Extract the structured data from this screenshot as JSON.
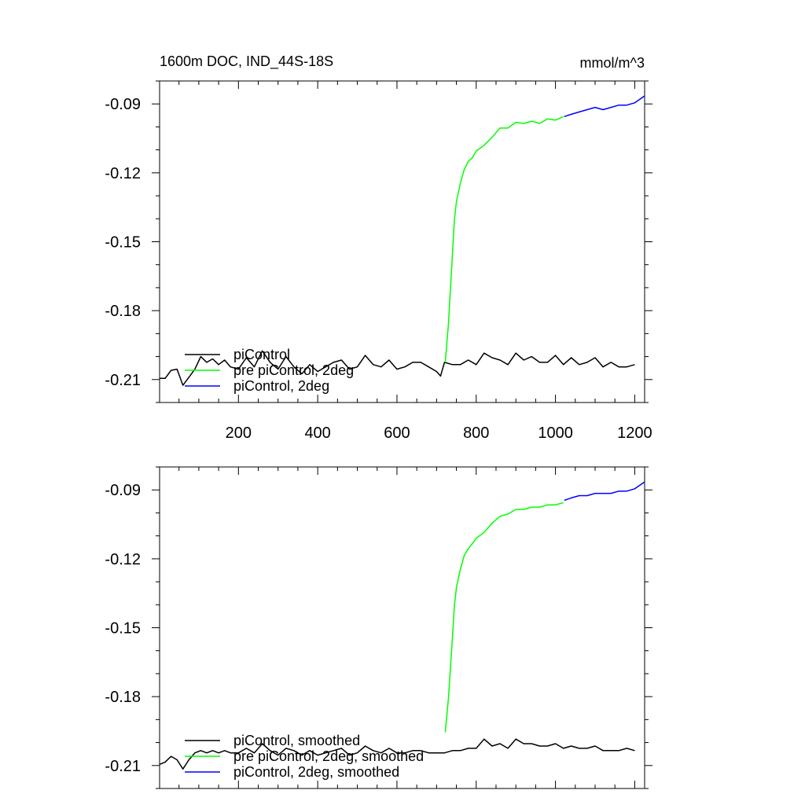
{
  "header": {
    "title": "1600m DOC, IND_44S-18S",
    "units": "mmol/m^3"
  },
  "colors": {
    "piControl": "#000000",
    "pre_piControl_2deg": "#00ff00",
    "piControl_2deg": "#0000ff"
  },
  "chart_data": [
    {
      "type": "line",
      "title": "1600m DOC, IND_44S-18S",
      "units": "mmol/m^3",
      "xlim": [
        1,
        1225
      ],
      "ylim": [
        -0.22,
        -0.08
      ],
      "x_ticks": [
        200,
        400,
        600,
        800,
        1000,
        1200
      ],
      "x_tick_labels": [
        "200",
        "400",
        "600",
        "800",
        "1000",
        "1200"
      ],
      "y_ticks": [
        -0.21,
        -0.18,
        -0.15,
        -0.12,
        -0.09
      ],
      "y_tick_labels": [
        "-0.21",
        "-0.18",
        "-0.15",
        "-0.12",
        "-0.09"
      ],
      "legend_position": "bottom-left",
      "grid": false,
      "series": [
        {
          "name": "piControl",
          "color": "#000000",
          "x": [
            1,
            15,
            30,
            45,
            60,
            75,
            90,
            105,
            120,
            135,
            150,
            165,
            180,
            200,
            220,
            240,
            260,
            280,
            300,
            320,
            340,
            360,
            380,
            400,
            420,
            440,
            460,
            480,
            500,
            520,
            540,
            560,
            580,
            600,
            620,
            640,
            660,
            680,
            700,
            710,
            720,
            740,
            760,
            780,
            800,
            820,
            840,
            860,
            880,
            900,
            920,
            940,
            960,
            980,
            1000,
            1020,
            1040,
            1060,
            1080,
            1100,
            1120,
            1140,
            1160,
            1180,
            1200
          ],
          "y": [
            -0.2095,
            -0.2095,
            -0.206,
            -0.2055,
            -0.2125,
            -0.209,
            -0.2055,
            -0.2,
            -0.2025,
            -0.201,
            -0.2035,
            -0.2015,
            -0.2045,
            -0.2055,
            -0.2005,
            -0.2045,
            -0.1975,
            -0.2025,
            -0.2055,
            -0.2,
            -0.2045,
            -0.2075,
            -0.2035,
            -0.2065,
            -0.2045,
            -0.2025,
            -0.2015,
            -0.2055,
            -0.2045,
            -0.1995,
            -0.2035,
            -0.2045,
            -0.2015,
            -0.2055,
            -0.2045,
            -0.2025,
            -0.2025,
            -0.2045,
            -0.2065,
            -0.2085,
            -0.2025,
            -0.2035,
            -0.2035,
            -0.2015,
            -0.2035,
            -0.1985,
            -0.2005,
            -0.2015,
            -0.2035,
            -0.1985,
            -0.2015,
            -0.2,
            -0.2025,
            -0.2025,
            -0.1995,
            -0.2035,
            -0.2005,
            -0.2035,
            -0.2025,
            -0.2005,
            -0.2045,
            -0.2025,
            -0.2045,
            -0.2045,
            -0.2035
          ]
        },
        {
          "name": "pre piControl, 2deg",
          "color": "#00ff00",
          "x": [
            722,
            730,
            740,
            745,
            750,
            760,
            770,
            780,
            790,
            800,
            820,
            840,
            860,
            880,
            900,
            920,
            940,
            960,
            980,
            1000,
            1020
          ],
          "y": [
            -0.2025,
            -0.1855,
            -0.1555,
            -0.1405,
            -0.1325,
            -0.1245,
            -0.1185,
            -0.115,
            -0.1135,
            -0.1105,
            -0.108,
            -0.1045,
            -0.1005,
            -0.1005,
            -0.098,
            -0.0985,
            -0.0975,
            -0.0985,
            -0.0965,
            -0.097,
            -0.0955
          ]
        },
        {
          "name": "piControl, 2deg",
          "color": "#0000ff",
          "x": [
            1022,
            1040,
            1060,
            1080,
            1100,
            1120,
            1140,
            1160,
            1180,
            1200,
            1225
          ],
          "y": [
            -0.0955,
            -0.0945,
            -0.0935,
            -0.0925,
            -0.0915,
            -0.0925,
            -0.0915,
            -0.0905,
            -0.0905,
            -0.0895,
            -0.0865
          ]
        }
      ]
    },
    {
      "type": "line",
      "xlim": [
        1,
        1225
      ],
      "ylim": [
        -0.22,
        -0.08
      ],
      "x_ticks": [
        200,
        400,
        600,
        800,
        1000,
        1200
      ],
      "y_ticks": [
        -0.21,
        -0.18,
        -0.15,
        -0.12,
        -0.09
      ],
      "y_tick_labels": [
        "-0.21",
        "-0.18",
        "-0.15",
        "-0.12",
        "-0.09"
      ],
      "legend_position": "bottom-left",
      "grid": false,
      "series": [
        {
          "name": "piControl, smoothed",
          "color": "#000000",
          "x": [
            1,
            15,
            30,
            45,
            60,
            75,
            90,
            105,
            120,
            135,
            150,
            165,
            180,
            200,
            220,
            240,
            260,
            280,
            300,
            320,
            340,
            360,
            380,
            400,
            420,
            440,
            460,
            480,
            500,
            520,
            540,
            560,
            580,
            600,
            620,
            640,
            660,
            680,
            700,
            710,
            720,
            740,
            760,
            780,
            800,
            820,
            840,
            860,
            880,
            900,
            920,
            940,
            960,
            980,
            1000,
            1020,
            1040,
            1060,
            1080,
            1100,
            1120,
            1140,
            1160,
            1180,
            1200
          ],
          "y": [
            -0.2095,
            -0.2085,
            -0.206,
            -0.2075,
            -0.2115,
            -0.2075,
            -0.2045,
            -0.2035,
            -0.2045,
            -0.2035,
            -0.2045,
            -0.2035,
            -0.2045,
            -0.2045,
            -0.2025,
            -0.2045,
            -0.2005,
            -0.2035,
            -0.2055,
            -0.2025,
            -0.2035,
            -0.2055,
            -0.2035,
            -0.2055,
            -0.2045,
            -0.2035,
            -0.2025,
            -0.2055,
            -0.2045,
            -0.2015,
            -0.2035,
            -0.2045,
            -0.2025,
            -0.2045,
            -0.2045,
            -0.2035,
            -0.2035,
            -0.2045,
            -0.2045,
            -0.2045,
            -0.2045,
            -0.2035,
            -0.2035,
            -0.2025,
            -0.2025,
            -0.1985,
            -0.2015,
            -0.2005,
            -0.2025,
            -0.1985,
            -0.2005,
            -0.2005,
            -0.2015,
            -0.2015,
            -0.2005,
            -0.2025,
            -0.2015,
            -0.2025,
            -0.2025,
            -0.2015,
            -0.2035,
            -0.2035,
            -0.2035,
            -0.2025,
            -0.2035
          ]
        },
        {
          "name": "pre piControl, 2deg, smoothed",
          "color": "#00ff00",
          "x": [
            722,
            730,
            740,
            745,
            750,
            760,
            770,
            780,
            790,
            800,
            820,
            840,
            860,
            880,
            900,
            920,
            940,
            960,
            980,
            1000,
            1020
          ],
          "y": [
            -0.1955,
            -0.1805,
            -0.1545,
            -0.1405,
            -0.1325,
            -0.1245,
            -0.1185,
            -0.1155,
            -0.1135,
            -0.111,
            -0.1085,
            -0.1045,
            -0.1015,
            -0.1005,
            -0.0985,
            -0.0985,
            -0.0975,
            -0.0975,
            -0.0965,
            -0.0965,
            -0.0955
          ]
        },
        {
          "name": "piControl, 2deg, smoothed",
          "color": "#0000ff",
          "x": [
            1022,
            1040,
            1060,
            1080,
            1100,
            1120,
            1140,
            1160,
            1180,
            1200,
            1225
          ],
          "y": [
            -0.0945,
            -0.0935,
            -0.0925,
            -0.0925,
            -0.0915,
            -0.0915,
            -0.0915,
            -0.0905,
            -0.0905,
            -0.0895,
            -0.0865
          ]
        }
      ]
    }
  ]
}
